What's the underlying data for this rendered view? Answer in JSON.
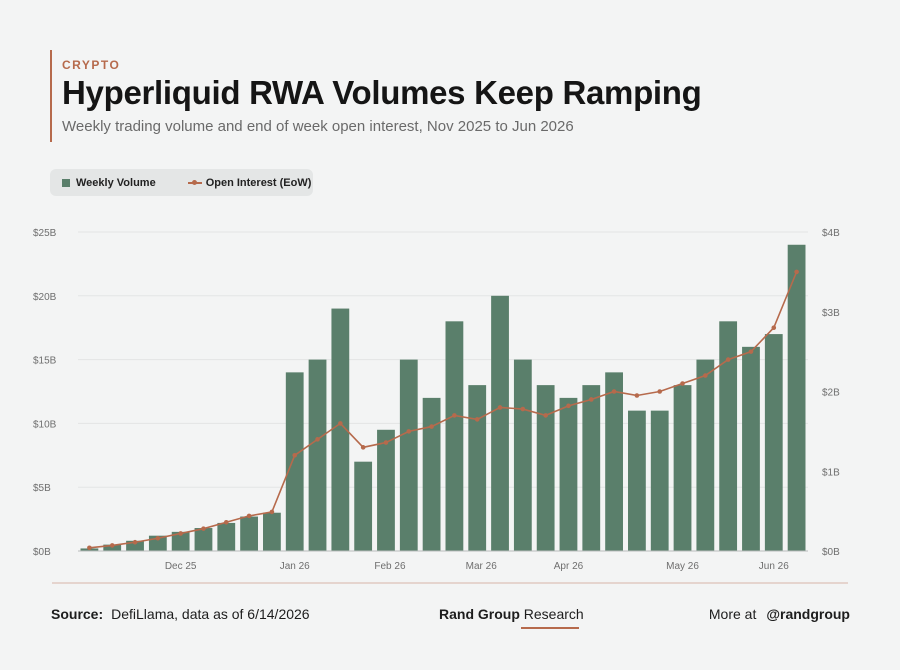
{
  "header": {
    "kicker": "CRYPTO",
    "title": "Hyperliquid RWA Volumes Keep Ramping",
    "subtitle": "Weekly trading volume and end of week open interest, Nov 2025 to Jun 2026"
  },
  "legend": {
    "bar_label": "Weekly Volume",
    "line_label": "Open Interest (EoW)"
  },
  "colors": {
    "bar": "#5a7f6b",
    "line": "#b66a4c",
    "accent": "#b66a4c",
    "grid": "#e3e5e5",
    "axis_text": "#6e6e6e"
  },
  "chart_data": {
    "type": "bar",
    "x_tick_labels": [
      "Dec 25",
      "Jan 26",
      "Feb 26",
      "Mar 26",
      "Apr 26",
      "May 26",
      "Jun 26"
    ],
    "y_left": {
      "ylim": [
        0,
        25
      ],
      "ticks": [
        0,
        5,
        10,
        15,
        20,
        25
      ],
      "tick_labels": [
        "$0B",
        "$5B",
        "$10B",
        "$15B",
        "$20B",
        "$25B"
      ]
    },
    "y_right": {
      "ylim": [
        0,
        4
      ],
      "ticks": [
        0,
        1,
        2,
        3,
        4
      ],
      "tick_labels": [
        "$0B",
        "$1B",
        "$2B",
        "$3B",
        "$4B"
      ]
    },
    "series": [
      {
        "name": "Weekly Volume",
        "type": "bar",
        "axis": "left",
        "values": [
          0.2,
          0.5,
          0.8,
          1.2,
          1.5,
          1.8,
          2.2,
          2.7,
          3.0,
          14,
          15,
          19,
          7,
          9.5,
          15,
          12,
          18,
          13,
          20,
          15,
          13,
          12,
          13,
          14,
          11,
          11,
          13,
          15,
          18,
          16,
          17,
          24
        ]
      },
      {
        "name": "Open Interest (EoW)",
        "type": "line",
        "axis": "right",
        "values": [
          0.04,
          0.07,
          0.11,
          0.16,
          0.22,
          0.28,
          0.36,
          0.44,
          0.49,
          1.2,
          1.4,
          1.6,
          1.3,
          1.36,
          1.5,
          1.56,
          1.7,
          1.65,
          1.8,
          1.78,
          1.7,
          1.82,
          1.9,
          2.0,
          1.95,
          2.0,
          2.1,
          2.2,
          2.4,
          2.5,
          2.8,
          3.5
        ]
      }
    ]
  },
  "footer": {
    "source_label": "Source:",
    "source_text": "DefiLlama, data as of 6/14/2026",
    "brand_bold": "Rand Group",
    "brand_light": "Research",
    "more_label": "More at",
    "handle": "@randgroup"
  }
}
